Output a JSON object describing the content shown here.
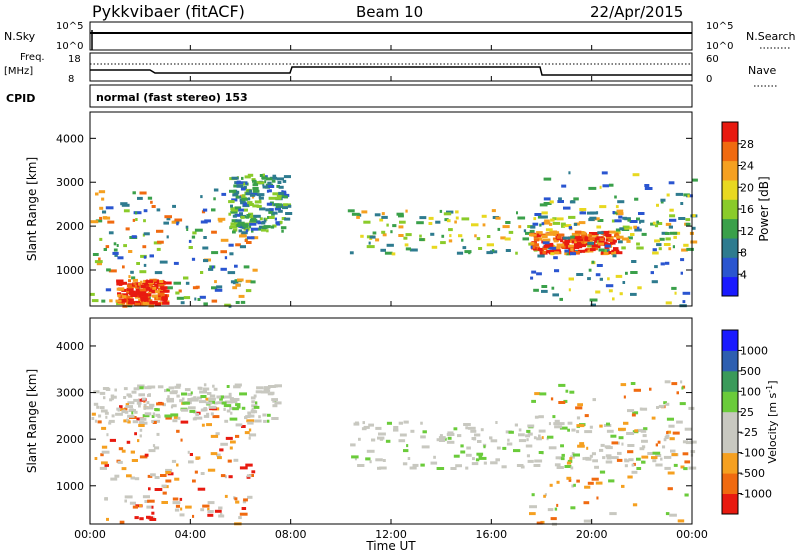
{
  "header": {
    "station": "Pykkvibaer (fitACF)",
    "beam": "Beam 10",
    "date": "22/Apr/2015"
  },
  "top_panels": {
    "nsky_label": "N.Sky",
    "nsearch_label": "N.Search",
    "nsky_tick_top": "10^5",
    "nsky_tick_bottom": "10^0",
    "nsearch_tick_top": "10^5",
    "nsearch_tick_bottom": "10^0",
    "freq_label_1": "Freq.",
    "freq_label_2": "[MHz]",
    "freq_tick_top": "18",
    "freq_tick_bottom": "8",
    "nave_label": "Nave",
    "nave_tick_top": "60",
    "nave_tick_bottom": "0",
    "cpid_label": "CPID",
    "cpid_text": "normal (fast stereo) 153"
  },
  "colors": {
    "power": [
      "#1a1aff",
      "#2a55d0",
      "#2e7b8f",
      "#3aa04a",
      "#8acb2a",
      "#e8d820",
      "#f5a020",
      "#f06a10",
      "#e81a10"
    ],
    "velocity": [
      "#e81a10",
      "#f06a10",
      "#f5a020",
      "#c8c8c0",
      "#c8c8c0",
      "#6acb3a",
      "#3a9a5a",
      "#2e5fb0",
      "#1a1aff"
    ]
  },
  "chart_data": [
    {
      "type": "heatmap",
      "title": "Power",
      "ylabel": "Slant Range [km]",
      "xlabel": "Time UT",
      "xlim": [
        "00:00",
        "24:00"
      ],
      "ylim": [
        180,
        4600
      ],
      "x_ticks": [
        "00:00",
        "04:00",
        "08:00",
        "12:00",
        "16:00",
        "20:00",
        "00:00"
      ],
      "y_ticks": [
        "1000",
        "2000",
        "3000",
        "4000"
      ],
      "colorbar": {
        "label": "Power [dB]",
        "ticks": [
          "4",
          "8",
          "12",
          "16",
          "20",
          "24",
          "28"
        ],
        "range": [
          0,
          30
        ]
      },
      "regions": [
        {
          "t0": 0.0,
          "t1": 6.5,
          "r0": 200,
          "r1": 2900,
          "level": "mixed"
        },
        {
          "t0": 1.0,
          "t1": 3.0,
          "r0": 250,
          "r1": 800,
          "level": "high"
        },
        {
          "t0": 5.5,
          "t1": 7.8,
          "r0": 1900,
          "r1": 3200,
          "level": "medium"
        },
        {
          "t0": 10.2,
          "t1": 24.0,
          "r0": 1400,
          "r1": 2400,
          "level": "medium-high"
        },
        {
          "t0": 17.5,
          "t1": 21.0,
          "r0": 1400,
          "r1": 1900,
          "level": "high"
        },
        {
          "t0": 17.5,
          "t1": 24.0,
          "r0": 200,
          "r1": 3300,
          "level": "scattered"
        }
      ]
    },
    {
      "type": "heatmap",
      "title": "Velocity",
      "ylabel": "Slant Range [km]",
      "xlabel": "Time UT",
      "xlim": [
        "00:00",
        "24:00"
      ],
      "ylim": [
        180,
        4600
      ],
      "x_ticks": [
        "00:00",
        "04:00",
        "08:00",
        "12:00",
        "16:00",
        "20:00",
        "00:00"
      ],
      "y_ticks": [
        "1000",
        "2000",
        "3000",
        "4000"
      ],
      "colorbar": {
        "label": "Velocity [m s^-1]",
        "ticks": [
          "1000",
          "500",
          "100",
          "25",
          "-25",
          "-100",
          "-500",
          "-1000"
        ],
        "range": [
          -1000,
          1000
        ]
      },
      "regions": [
        {
          "t0": 0.0,
          "t1": 6.5,
          "r0": 200,
          "r1": 2900,
          "level": "negative-mixed"
        },
        {
          "t0": 0.0,
          "t1": 7.5,
          "r0": 2400,
          "r1": 3200,
          "level": "near-zero"
        },
        {
          "t0": 10.2,
          "t1": 24.0,
          "r0": 1400,
          "r1": 2400,
          "level": "near-zero"
        },
        {
          "t0": 17.5,
          "t1": 24.0,
          "r0": 200,
          "r1": 3300,
          "level": "scattered"
        }
      ]
    }
  ]
}
